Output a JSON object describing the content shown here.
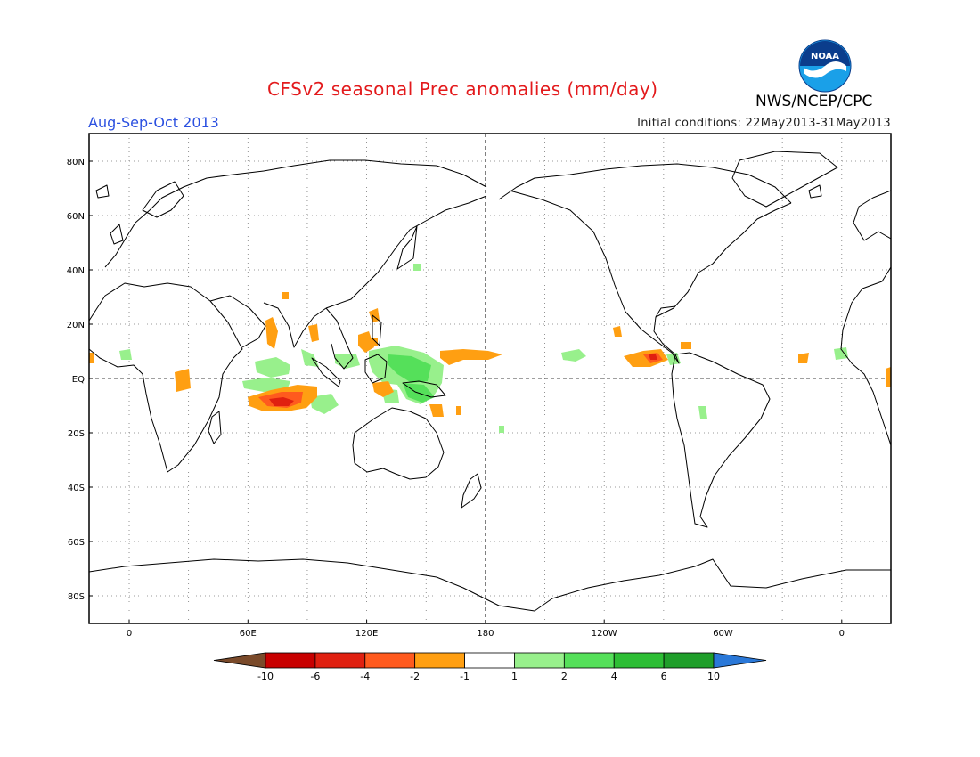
{
  "header": {
    "title": "CFSv2 seasonal Prec anomalies (mm/day)",
    "season": "Aug-Sep-Oct 2013",
    "initial_conditions": "Initial conditions: 22May2013-31May2013",
    "agency": "NWS/NCEP/CPC",
    "logo_text": "NOAA"
  },
  "map": {
    "lat_labels": [
      "80N",
      "60N",
      "40N",
      "20N",
      "EQ",
      "20S",
      "40S",
      "60S",
      "80S"
    ],
    "lon_labels": [
      "0",
      "60E",
      "120E",
      "180",
      "120W",
      "60W",
      "0"
    ]
  },
  "colorbar": {
    "labels": [
      "-10",
      "-6",
      "-4",
      "-2",
      "-1",
      "1",
      "2",
      "4",
      "6",
      "10"
    ],
    "colors": [
      "#7a4a2a",
      "#c80000",
      "#e02010",
      "#ff5a1e",
      "#ff9f12",
      "#ffffff",
      "#98f08c",
      "#55e05a",
      "#2dbe35",
      "#1f9e2a",
      "#2a78d8"
    ]
  },
  "colors": {
    "title": "#e31a1c",
    "season": "#2b50e0",
    "wet": "#98f08c",
    "wet_strong": "#55e05a",
    "dry": "#ff9f12",
    "dry_strong": "#ff5a1e",
    "dry_extreme": "#e02010"
  }
}
